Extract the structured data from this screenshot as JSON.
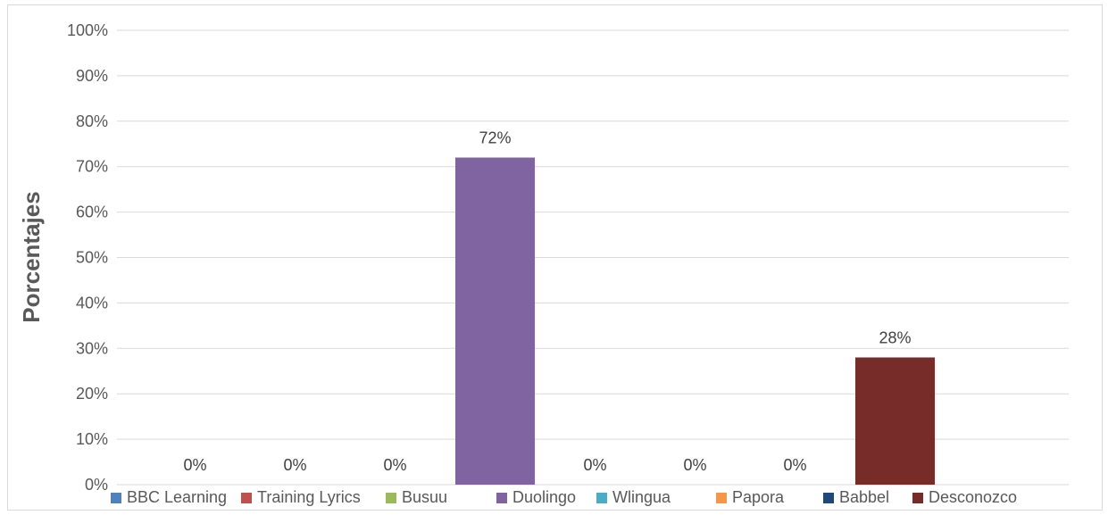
{
  "chart_data": {
    "type": "bar",
    "ylabel": "Porcentajes",
    "xlabel": "",
    "ylim": [
      0,
      100
    ],
    "yticks": [
      "0%",
      "10%",
      "20%",
      "30%",
      "40%",
      "50%",
      "60%",
      "70%",
      "80%",
      "90%",
      "100%"
    ],
    "grid": true,
    "legend_position": "bottom",
    "series": [
      {
        "name": "BBC Learning",
        "value": 0,
        "label": "0%",
        "color": "#4f81bd"
      },
      {
        "name": "Training Lyrics",
        "value": 0,
        "label": "0%",
        "color": "#c0504d"
      },
      {
        "name": "Busuu",
        "value": 0,
        "label": "0%",
        "color": "#9bbb59"
      },
      {
        "name": "Duolingo",
        "value": 72,
        "label": "72%",
        "color": "#8064a2"
      },
      {
        "name": "Wlingua",
        "value": 0,
        "label": "0%",
        "color": "#4bacc6"
      },
      {
        "name": "Papora",
        "value": 0,
        "label": "0%",
        "color": "#f79646"
      },
      {
        "name": "Babbel",
        "value": 0,
        "label": "0%",
        "color": "#1f497d"
      },
      {
        "name": "Desconozco",
        "value": 28,
        "label": "28%",
        "color": "#772c2a"
      }
    ]
  }
}
